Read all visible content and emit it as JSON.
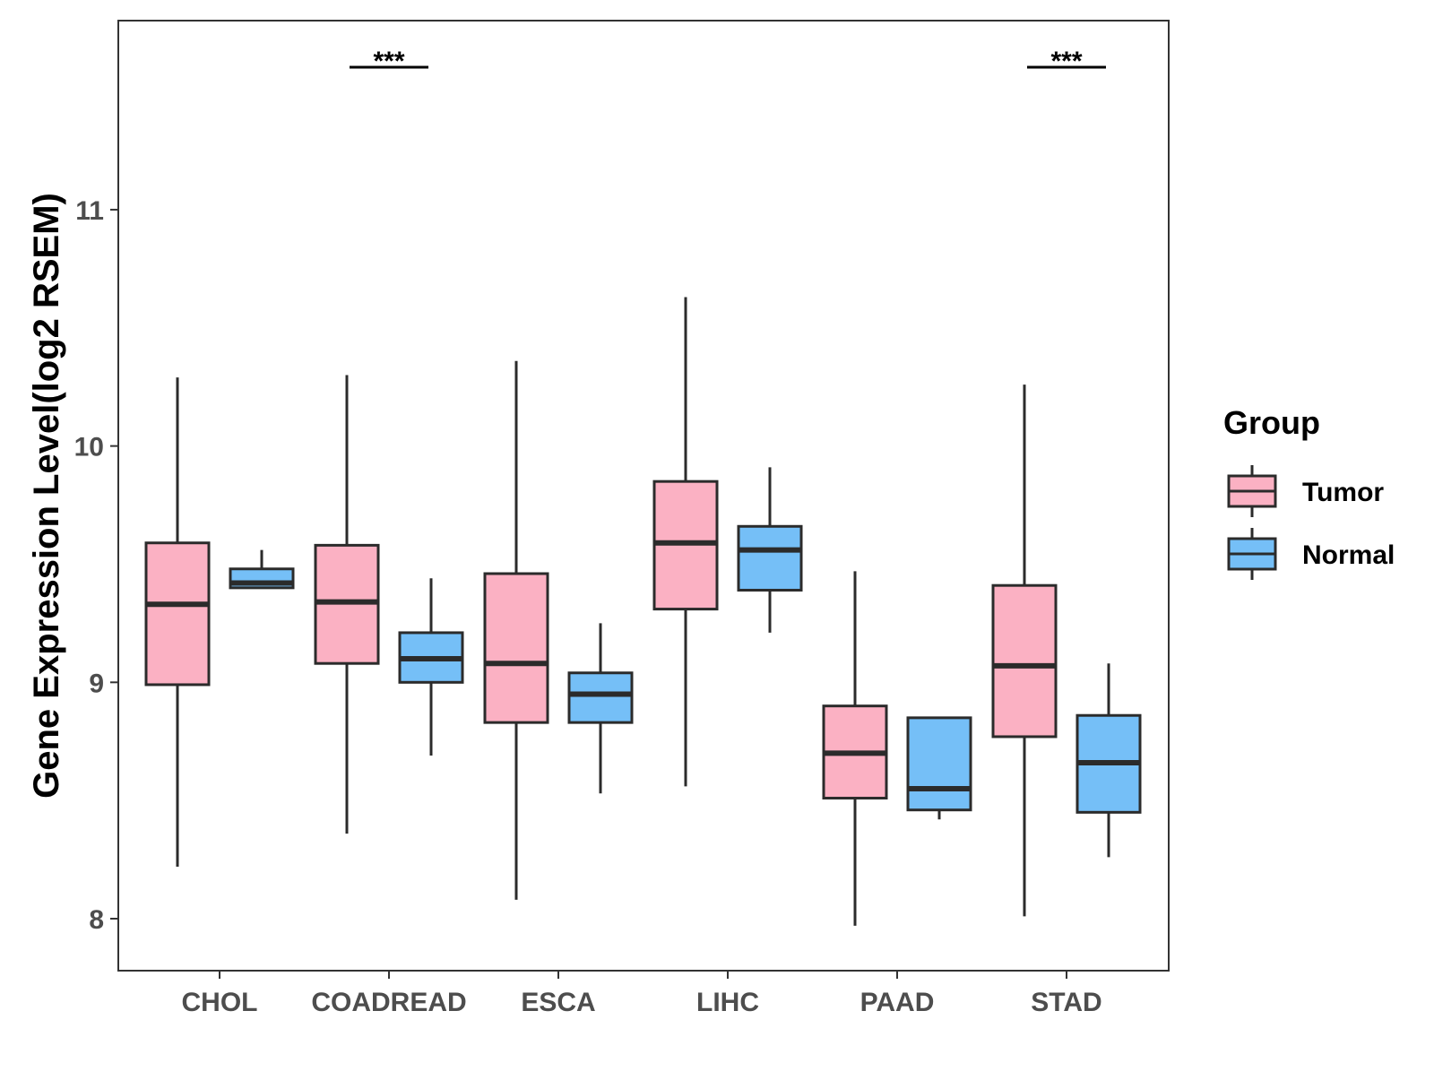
{
  "chart_data": {
    "type": "boxplot",
    "title": "",
    "xlabel": "",
    "ylabel": "Gene Expression Level(log2 RSEM)",
    "ylim": [
      7.78,
      11.8
    ],
    "yticks": [
      8,
      9,
      10,
      11
    ],
    "ytick_labels": [
      "8",
      "9",
      "10",
      "11"
    ],
    "categories": [
      "CHOL",
      "COADREAD",
      "ESCA",
      "LIHC",
      "PAAD",
      "STAD"
    ],
    "legend": {
      "title": "Group",
      "position": "right",
      "entries": [
        {
          "label": "Tumor",
          "color": "#FBB1C3"
        },
        {
          "label": "Normal",
          "color": "#75BFF7"
        }
      ]
    },
    "series": [
      {
        "name": "Tumor",
        "color": "#FBB1C3",
        "boxes": [
          {
            "category": "CHOL",
            "min": 8.22,
            "q1": 8.99,
            "median": 9.33,
            "q3": 9.59,
            "max": 10.29
          },
          {
            "category": "COADREAD",
            "min": 8.36,
            "q1": 9.08,
            "median": 9.34,
            "q3": 9.58,
            "max": 10.3
          },
          {
            "category": "ESCA",
            "min": 8.08,
            "q1": 8.83,
            "median": 9.08,
            "q3": 9.46,
            "max": 10.36
          },
          {
            "category": "LIHC",
            "min": 8.56,
            "q1": 9.31,
            "median": 9.59,
            "q3": 9.85,
            "max": 10.63
          },
          {
            "category": "PAAD",
            "min": 7.97,
            "q1": 8.51,
            "median": 8.7,
            "q3": 8.9,
            "max": 9.47
          },
          {
            "category": "STAD",
            "min": 8.01,
            "q1": 8.77,
            "median": 9.07,
            "q3": 9.41,
            "max": 10.26
          }
        ]
      },
      {
        "name": "Normal",
        "color": "#75BFF7",
        "boxes": [
          {
            "category": "CHOL",
            "min": 9.4,
            "q1": 9.4,
            "median": 9.42,
            "q3": 9.48,
            "max": 9.56
          },
          {
            "category": "COADREAD",
            "min": 8.69,
            "q1": 9.0,
            "median": 9.1,
            "q3": 9.21,
            "max": 9.44
          },
          {
            "category": "ESCA",
            "min": 8.53,
            "q1": 8.83,
            "median": 8.95,
            "q3": 9.04,
            "max": 9.25
          },
          {
            "category": "LIHC",
            "min": 9.21,
            "q1": 9.39,
            "median": 9.56,
            "q3": 9.66,
            "max": 9.91
          },
          {
            "category": "PAAD",
            "min": 8.42,
            "q1": 8.46,
            "median": 8.55,
            "q3": 8.85,
            "max": 8.85
          },
          {
            "category": "STAD",
            "min": 8.26,
            "q1": 8.45,
            "median": 8.66,
            "q3": 8.86,
            "max": 9.08
          }
        ]
      }
    ],
    "annotations": [
      {
        "category": "COADREAD",
        "text": "***"
      },
      {
        "category": "STAD",
        "text": "***"
      }
    ]
  }
}
